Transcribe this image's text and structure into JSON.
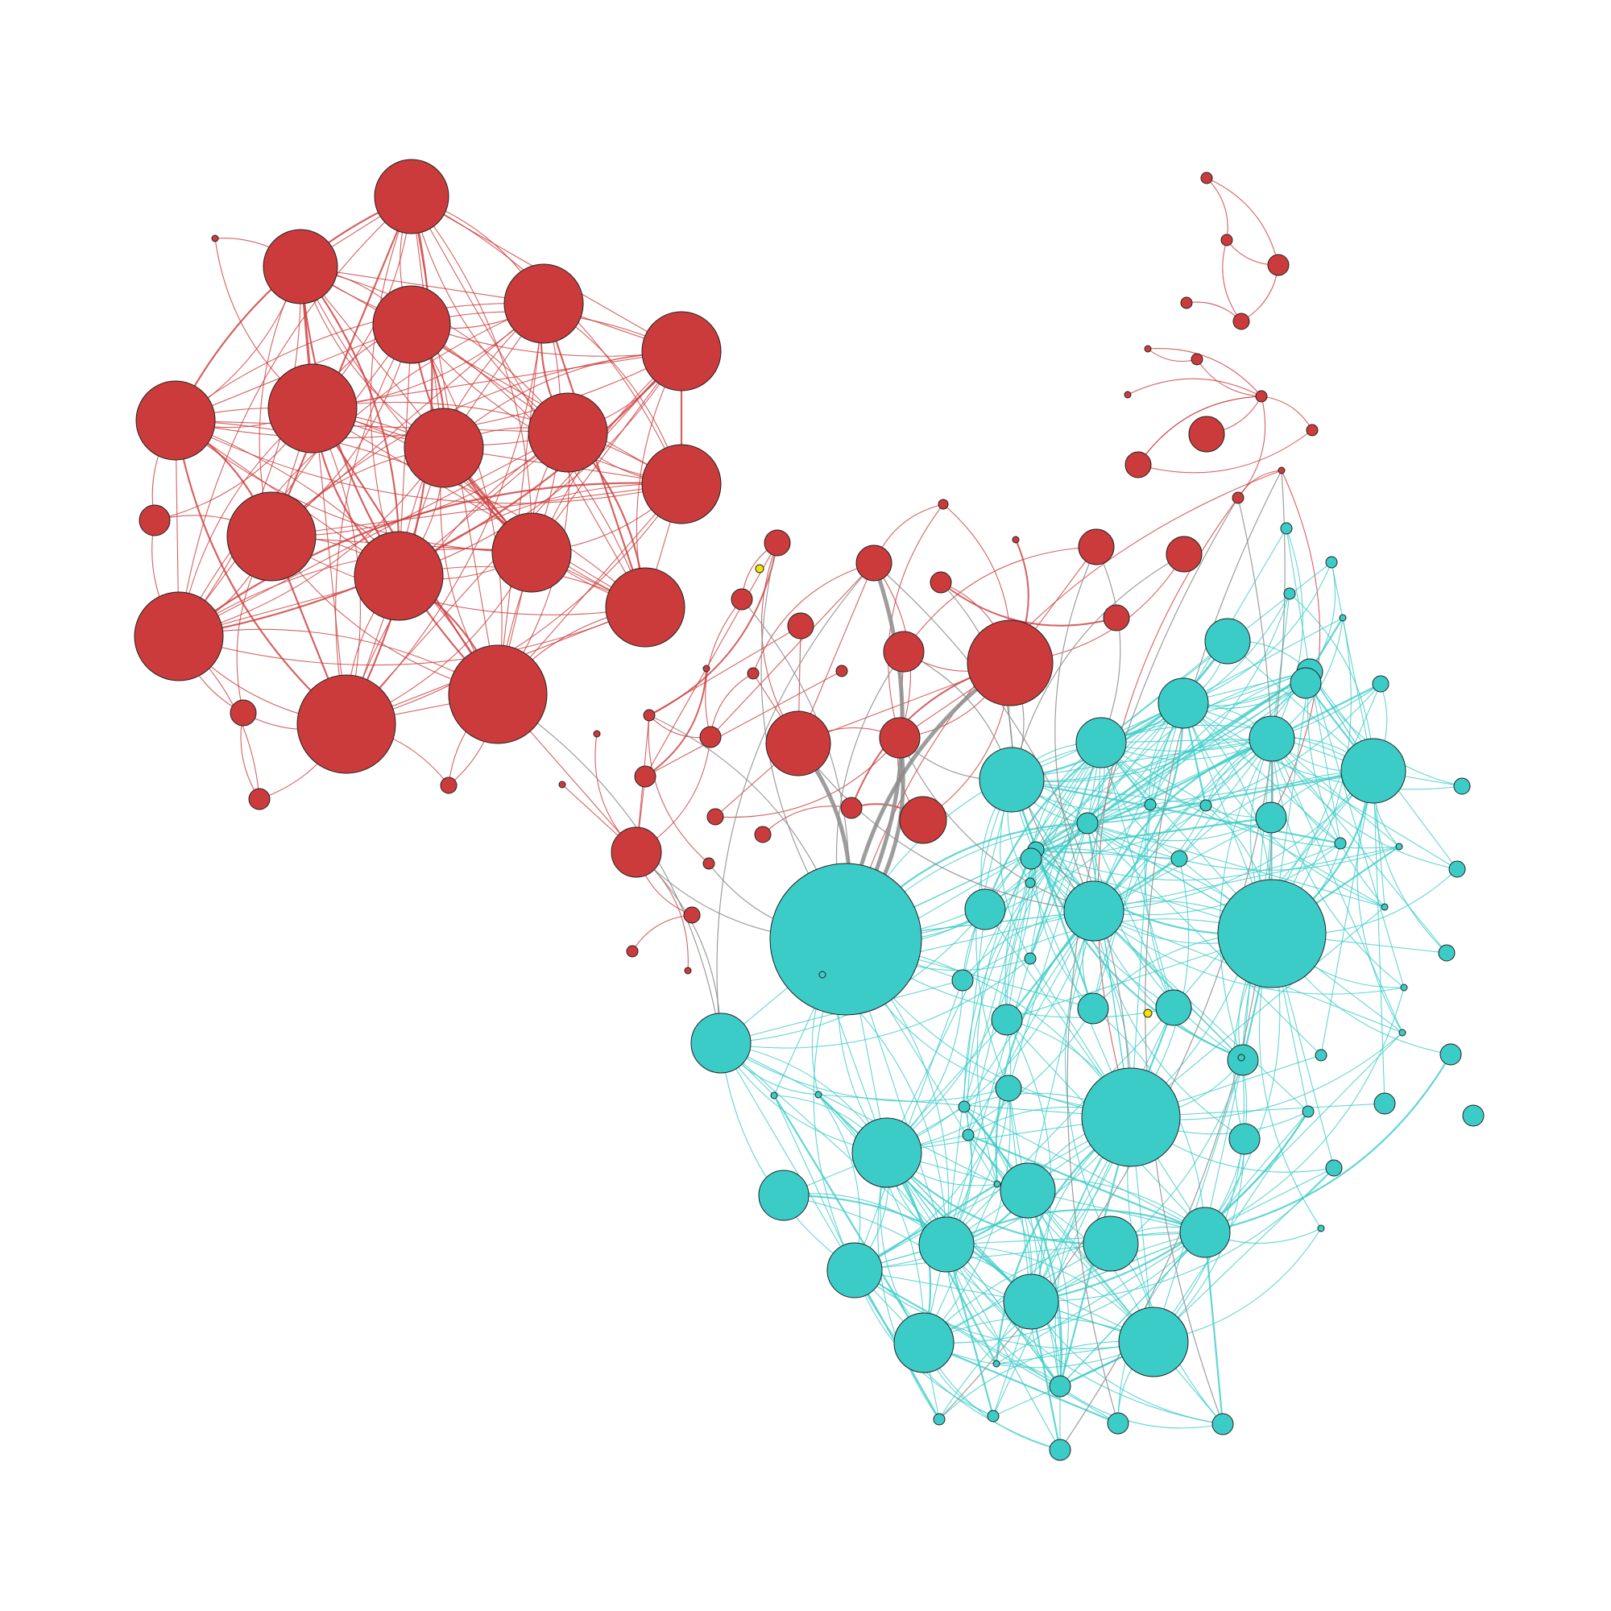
{
  "colors": {
    "background": "#ffffff",
    "cluster_a": "#cc3b3b",
    "cluster_b": "#3cccc8",
    "bridge_edge": "#8c8c8c",
    "isolated": "#f0e600",
    "node_stroke": "#222222"
  },
  "legend": null,
  "title": ""
}
